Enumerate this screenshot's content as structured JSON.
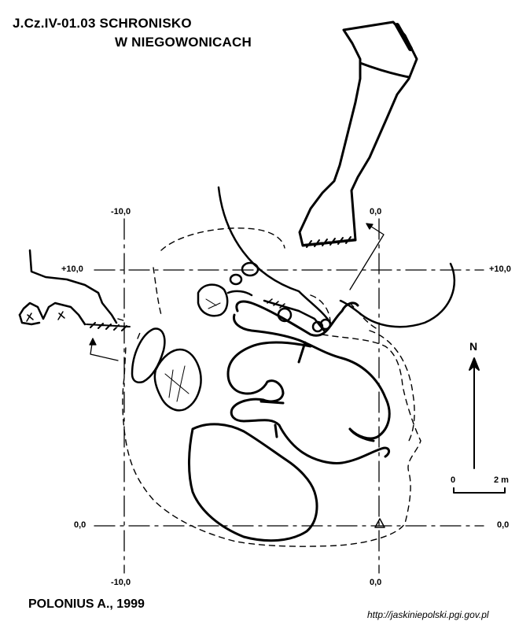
{
  "title": {
    "line1": "J.Cz.IV-01.03  SCHRONISKO",
    "line2": "W NIEGOWONICACH"
  },
  "grid_labels": {
    "x_minus10_top": "-10,0",
    "x_0_top": "0,0",
    "y_plus10_left": "+10,0",
    "y_plus10_right": "+10,0",
    "y_0_left": "0,0",
    "y_0_right": "0,0",
    "x_minus10_bottom": "-10,0",
    "x_0_bottom": "0,0"
  },
  "north_arrow": {
    "label": "N"
  },
  "scale_bar": {
    "start_label": "0",
    "end_label": "2 m"
  },
  "author": "POLONIUS A., 1999",
  "source_url": "http://jaskiniepolski.pgi.gov.pl",
  "colors": {
    "ink": "#000000",
    "background": "#ffffff"
  }
}
